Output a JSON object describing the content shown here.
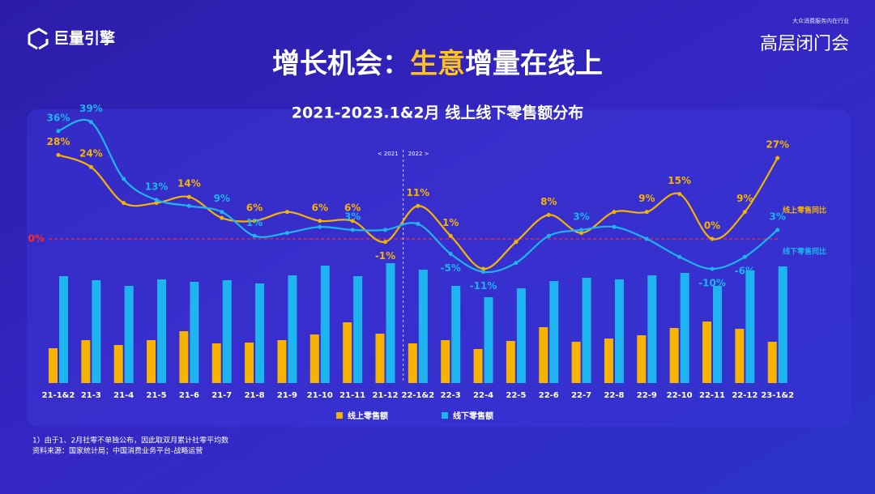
{
  "header": {
    "logo": "巨量引擎",
    "event_tagline": "大众消费服务内在行业",
    "event_logo": "高层闭门会",
    "title_parts": [
      "增长机会：",
      "生意",
      "增量在线上"
    ]
  },
  "chart_data": [
    {
      "type": "bar",
      "title": "2021-2023.1&2月 线上线下零售额分布",
      "categories": [
        "21-1&2",
        "21-3",
        "21-4",
        "21-5",
        "21-6",
        "21-7",
        "21-8",
        "21-9",
        "21-10",
        "21-11",
        "21-12",
        "22-1&2",
        "22-3",
        "22-4",
        "22-5",
        "22-6",
        "22-7",
        "22-8",
        "22-9",
        "22-10",
        "22-11",
        "22-12",
        "23-1&2"
      ],
      "series": [
        {
          "name": "线上零售额",
          "color": "#f6b400",
          "values": [
            43,
            53,
            47,
            53,
            64,
            49,
            50,
            53,
            60,
            75,
            61,
            49,
            53,
            42,
            52,
            69,
            51,
            55,
            59,
            68,
            76,
            67,
            51
          ]
        },
        {
          "name": "线下零售额",
          "color": "#1eb4f0",
          "values": [
            132,
            127,
            120,
            128,
            125,
            127,
            123,
            133,
            145,
            132,
            148,
            140,
            120,
            106,
            117,
            126,
            130,
            128,
            133,
            136,
            120,
            139,
            144
          ]
        }
      ]
    },
    {
      "type": "line",
      "zero_label": "0%",
      "divider_labels": [
        "< 2021",
        "2022 >"
      ],
      "series": [
        {
          "name": "线上零售同比",
          "color": "#f6b400",
          "values": [
            28,
            24,
            12,
            12,
            14,
            7,
            6,
            9,
            6,
            6,
            -1,
            11,
            1,
            -10,
            -1,
            8,
            2,
            9,
            9,
            15,
            0,
            9,
            27
          ],
          "value_labels": [
            "28%",
            "24%",
            null,
            null,
            "14%",
            null,
            "6%",
            null,
            "6%",
            "6%",
            "-1%",
            "11%",
            "1%",
            null,
            null,
            "8%",
            null,
            null,
            "9%",
            "15%",
            "0%",
            "9%",
            "27%"
          ]
        },
        {
          "name": "线下零售同比",
          "color": "#1eb4f0",
          "values": [
            36,
            39,
            20,
            13,
            11,
            9,
            1,
            2,
            4,
            3,
            3,
            5,
            -5,
            -11,
            -8,
            1,
            3,
            4,
            0,
            -6,
            -10,
            -6,
            3
          ],
          "value_labels": [
            "36%",
            "39%",
            null,
            "13%",
            null,
            "9%",
            "1%",
            null,
            null,
            "3%",
            null,
            null,
            "-5%",
            "-11%",
            null,
            null,
            "3%",
            null,
            null,
            null,
            "-10%",
            "-6%",
            "3%"
          ]
        }
      ]
    }
  ],
  "footnotes": [
    "1）由于1、2月社零不单独公布，因此取双月累计社零平均数",
    "资料来源：国家统计局；中国消费业务平台-战略运营"
  ]
}
